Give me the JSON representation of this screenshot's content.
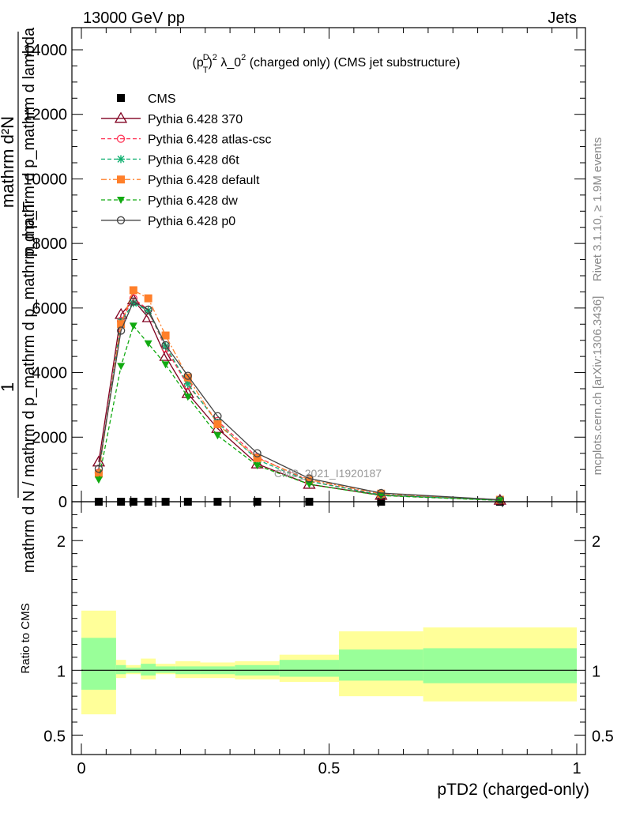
{
  "header": {
    "left": "13000 GeV pp",
    "right": "Jets"
  },
  "side": {
    "rivet": "Rivet 3.1.10, ≥ 1.9M events",
    "mcplots": "mcplots.cern.ch [arXiv:1306.3436]"
  },
  "chart_data": [
    {
      "type": "line",
      "panel": "main",
      "title_base": "(p",
      "title_sup_d": "D",
      "title_sub_t": "T",
      "title_sup_2": "2",
      "title_rest": " λ_0",
      "title_sup_2b": "2",
      "title_tail": " (charged only) (CMS jet substructure)",
      "watermark": "CMS_2021_I1920187",
      "ylabel_numerator": "1",
      "ylabel_denominator": "mathrm d N / mathrm d p_mathrm d p_mathrm d p_T",
      "ylabel_top_num": "mathrm d²N",
      "ylabel_top_den": "p_mathrm d p_mathrm d lambda",
      "xlim": [
        0,
        1
      ],
      "ylim": [
        0,
        14000
      ],
      "yticks": [
        {
          "v": 0,
          "label": "0"
        },
        {
          "v": 2000,
          "label": "2000"
        },
        {
          "v": 4000,
          "label": "4000"
        },
        {
          "v": 6000,
          "label": "6000"
        },
        {
          "v": 8000,
          "label": "8000"
        },
        {
          "v": 10000,
          "label": "10000"
        },
        {
          "v": 12000,
          "label": "12000"
        },
        {
          "v": 14000,
          "label": "14000"
        }
      ],
      "x": [
        0.035,
        0.08,
        0.105,
        0.135,
        0.17,
        0.215,
        0.275,
        0.355,
        0.46,
        0.605,
        0.845
      ],
      "series": [
        {
          "name": "CMS",
          "color": "#000000",
          "marker": "square",
          "dash": "none",
          "values": [
            0,
            0,
            0,
            0,
            0,
            0,
            0,
            0,
            0,
            0,
            0
          ]
        },
        {
          "name": "Pythia 6.428 370",
          "color": "#800020",
          "marker": "triangle-open",
          "dash": "solid",
          "values": [
            1230,
            5800,
            6250,
            5700,
            4500,
            3350,
            2270,
            1170,
            540,
            200,
            45
          ]
        },
        {
          "name": "Pythia 6.428 atlas-csc",
          "color": "#ff3355",
          "marker": "circle-open",
          "dash": "dashed",
          "values": [
            900,
            5600,
            6300,
            5950,
            4750,
            3600,
            2500,
            1380,
            640,
            220,
            50
          ]
        },
        {
          "name": "Pythia 6.428 d6t",
          "color": "#10b070",
          "marker": "star",
          "dash": "dashed",
          "values": [
            880,
            5580,
            6150,
            5920,
            4820,
            3650,
            2450,
            1300,
            630,
            210,
            48
          ]
        },
        {
          "name": "Pythia 6.428 default",
          "color": "#ff7f2a",
          "marker": "square",
          "dash": "dashdot",
          "values": [
            870,
            5500,
            6550,
            6300,
            5150,
            3850,
            2400,
            1350,
            680,
            250,
            60
          ]
        },
        {
          "name": "Pythia 6.428 dw",
          "color": "#11aa11",
          "marker": "triangle-down",
          "dash": "dashed",
          "values": [
            680,
            4200,
            5450,
            4900,
            4250,
            3250,
            2050,
            1120,
            540,
            190,
            40
          ]
        },
        {
          "name": "Pythia 6.428 p0",
          "color": "#444444",
          "marker": "circle-open",
          "dash": "solid",
          "values": [
            1020,
            5300,
            6200,
            5950,
            4850,
            3900,
            2650,
            1500,
            720,
            270,
            60
          ]
        }
      ]
    },
    {
      "type": "area",
      "panel": "ratio",
      "ylabel": "Ratio to CMS",
      "xlabel": "pTD2 (charged-only)",
      "ylim": [
        0.35,
        2.3
      ],
      "yticks": [
        {
          "v": 0.5,
          "label": "0.5"
        },
        {
          "v": 1,
          "label": "1"
        },
        {
          "v": 2,
          "label": "2"
        }
      ],
      "xticks": [
        {
          "v": 0,
          "label": "0"
        },
        {
          "v": 0.5,
          "label": "0.5"
        },
        {
          "v": 1,
          "label": "1"
        }
      ],
      "bins": [
        {
          "x0": 0.0,
          "x1": 0.07,
          "green": [
            0.85,
            1.25
          ],
          "yellow": [
            0.66,
            1.46
          ]
        },
        {
          "x0": 0.07,
          "x1": 0.09,
          "green": [
            0.97,
            1.04
          ],
          "yellow": [
            0.94,
            1.08
          ]
        },
        {
          "x0": 0.09,
          "x1": 0.12,
          "green": [
            0.98,
            1.02
          ],
          "yellow": [
            0.97,
            1.04
          ]
        },
        {
          "x0": 0.12,
          "x1": 0.15,
          "green": [
            0.96,
            1.05
          ],
          "yellow": [
            0.93,
            1.09
          ]
        },
        {
          "x0": 0.15,
          "x1": 0.19,
          "green": [
            0.98,
            1.03
          ],
          "yellow": [
            0.97,
            1.05
          ]
        },
        {
          "x0": 0.19,
          "x1": 0.24,
          "green": [
            0.97,
            1.03
          ],
          "yellow": [
            0.94,
            1.07
          ]
        },
        {
          "x0": 0.24,
          "x1": 0.31,
          "green": [
            0.97,
            1.03
          ],
          "yellow": [
            0.94,
            1.06
          ]
        },
        {
          "x0": 0.31,
          "x1": 0.4,
          "green": [
            0.96,
            1.04
          ],
          "yellow": [
            0.93,
            1.07
          ]
        },
        {
          "x0": 0.4,
          "x1": 0.52,
          "green": [
            0.95,
            1.08
          ],
          "yellow": [
            0.91,
            1.12
          ]
        },
        {
          "x0": 0.52,
          "x1": 0.69,
          "green": [
            0.92,
            1.16
          ],
          "yellow": [
            0.8,
            1.3
          ]
        },
        {
          "x0": 0.69,
          "x1": 1.0,
          "green": [
            0.9,
            1.17
          ],
          "yellow": [
            0.76,
            1.33
          ]
        }
      ]
    }
  ]
}
